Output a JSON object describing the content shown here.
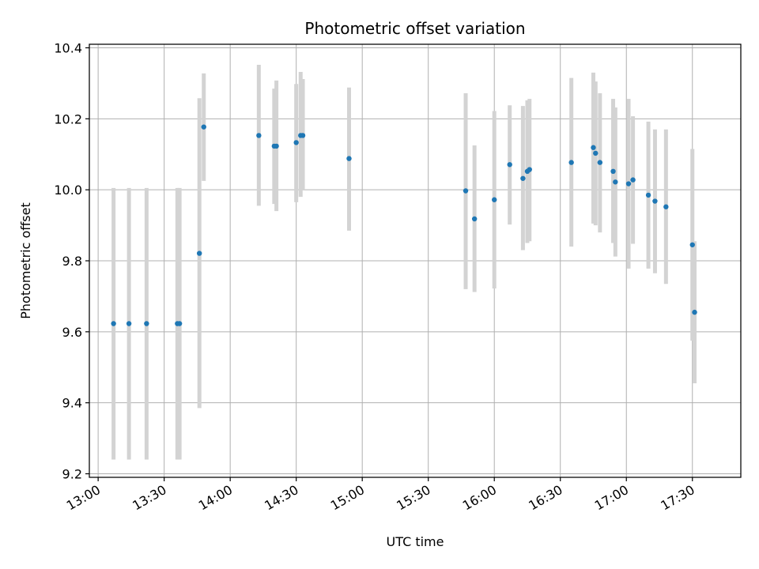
{
  "chart_data": {
    "type": "scatter",
    "title": "Photometric offset variation",
    "xlabel": "UTC time",
    "ylabel": "Photometric offset",
    "xlim": [
      "12:56",
      "17:52"
    ],
    "ylim": [
      9.19,
      10.41
    ],
    "x_ticks": [
      "13:00",
      "13:30",
      "14:00",
      "14:30",
      "15:00",
      "15:30",
      "16:00",
      "16:30",
      "17:00",
      "17:30"
    ],
    "y_ticks": [
      "9.2",
      "9.4",
      "9.6",
      "9.8",
      "10.0",
      "10.2",
      "10.4"
    ],
    "grid": true,
    "colors": {
      "point": "#1f77b4",
      "errorbar": "#d3d3d3",
      "grid": "#b0b0b0"
    },
    "series": [
      {
        "points": [
          {
            "x": "13:07",
            "y": 9.623,
            "lo": 9.24,
            "hi": 10.005
          },
          {
            "x": "13:14",
            "y": 9.623,
            "lo": 9.24,
            "hi": 10.005
          },
          {
            "x": "13:22",
            "y": 9.623,
            "lo": 9.24,
            "hi": 10.005
          },
          {
            "x": "13:36",
            "y": 9.623,
            "lo": 9.24,
            "hi": 10.005
          },
          {
            "x": "13:37",
            "y": 9.623,
            "lo": 9.24,
            "hi": 10.005
          },
          {
            "x": "13:46",
            "y": 9.821,
            "lo": 9.385,
            "hi": 10.258
          },
          {
            "x": "13:48",
            "y": 10.177,
            "lo": 10.025,
            "hi": 10.328
          },
          {
            "x": "14:13",
            "y": 10.153,
            "lo": 9.955,
            "hi": 10.352
          },
          {
            "x": "14:20",
            "y": 10.123,
            "lo": 9.96,
            "hi": 10.285
          },
          {
            "x": "14:21",
            "y": 10.123,
            "lo": 9.94,
            "hi": 10.308
          },
          {
            "x": "14:30",
            "y": 10.133,
            "lo": 9.965,
            "hi": 10.298
          },
          {
            "x": "14:32",
            "y": 10.153,
            "lo": 9.98,
            "hi": 10.332
          },
          {
            "x": "14:33",
            "y": 10.153,
            "lo": 10.0,
            "hi": 10.312
          },
          {
            "x": "14:54",
            "y": 10.088,
            "lo": 9.885,
            "hi": 10.288
          },
          {
            "x": "15:47",
            "y": 9.997,
            "lo": 9.72,
            "hi": 10.272
          },
          {
            "x": "15:51",
            "y": 9.918,
            "lo": 9.712,
            "hi": 10.125
          },
          {
            "x": "16:00",
            "y": 9.972,
            "lo": 9.722,
            "hi": 10.222
          },
          {
            "x": "16:07",
            "y": 10.071,
            "lo": 9.902,
            "hi": 10.238
          },
          {
            "x": "16:13",
            "y": 10.032,
            "lo": 9.83,
            "hi": 10.236
          },
          {
            "x": "16:15",
            "y": 10.052,
            "lo": 9.85,
            "hi": 10.252
          },
          {
            "x": "16:16",
            "y": 10.057,
            "lo": 9.855,
            "hi": 10.256
          },
          {
            "x": "16:35",
            "y": 10.077,
            "lo": 9.84,
            "hi": 10.315
          },
          {
            "x": "16:45",
            "y": 10.119,
            "lo": 9.905,
            "hi": 10.33
          },
          {
            "x": "16:46",
            "y": 10.103,
            "lo": 9.9,
            "hi": 10.305
          },
          {
            "x": "16:48",
            "y": 10.077,
            "lo": 9.88,
            "hi": 10.272
          },
          {
            "x": "16:54",
            "y": 10.052,
            "lo": 9.85,
            "hi": 10.256
          },
          {
            "x": "16:55",
            "y": 10.022,
            "lo": 9.812,
            "hi": 10.232
          },
          {
            "x": "17:01",
            "y": 10.017,
            "lo": 9.778,
            "hi": 10.256
          },
          {
            "x": "17:03",
            "y": 10.028,
            "lo": 9.848,
            "hi": 10.207
          },
          {
            "x": "17:10",
            "y": 9.985,
            "lo": 9.778,
            "hi": 10.192
          },
          {
            "x": "17:13",
            "y": 9.968,
            "lo": 9.765,
            "hi": 10.17
          },
          {
            "x": "17:18",
            "y": 9.952,
            "lo": 9.735,
            "hi": 10.17
          },
          {
            "x": "17:30",
            "y": 9.845,
            "lo": 9.575,
            "hi": 10.115
          },
          {
            "x": "17:31",
            "y": 9.655,
            "lo": 9.455,
            "hi": 9.855
          }
        ]
      }
    ]
  }
}
